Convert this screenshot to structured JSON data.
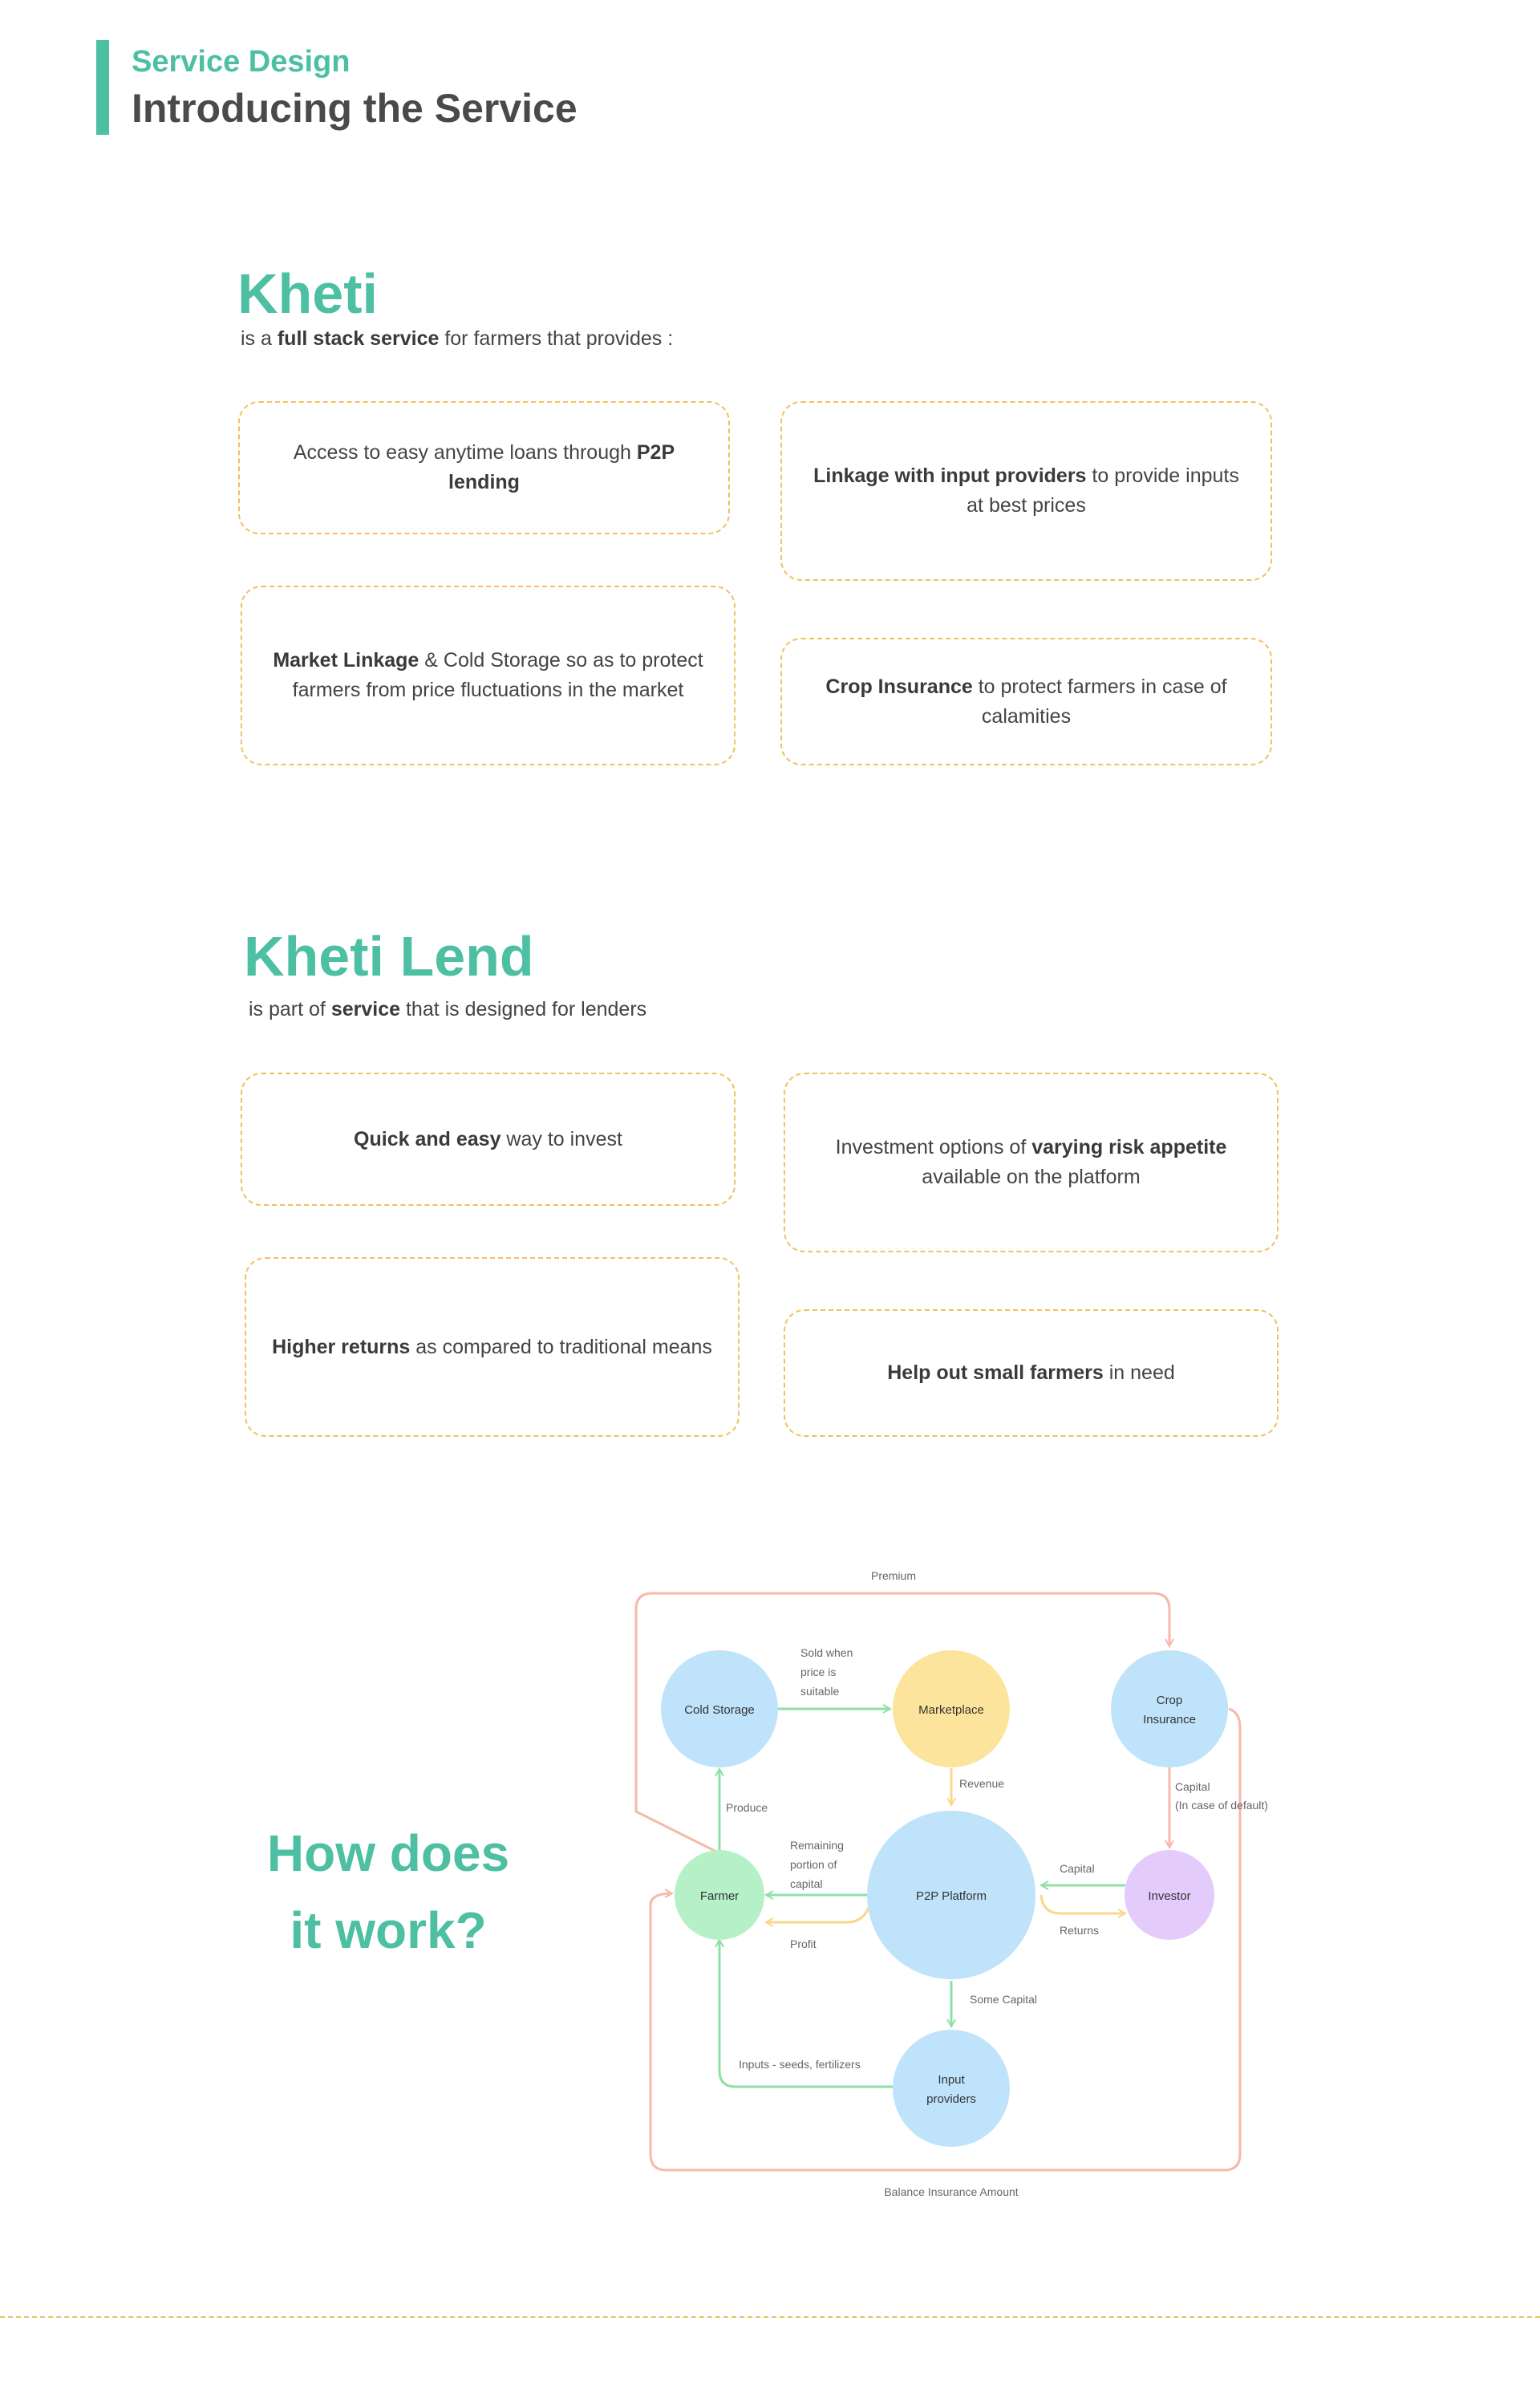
{
  "header": {
    "eyebrow": "Service Design",
    "title": "Introducing the Service"
  },
  "kheti": {
    "brand": "Kheti",
    "intro": [
      {
        "text": "is a ",
        "bold": false
      },
      {
        "text": "full stack service",
        "bold": true
      },
      {
        "text": " for farmers that provides :",
        "bold": false
      }
    ],
    "cards": [
      [
        {
          "text": "Access to easy anytime loans through ",
          "bold": false
        },
        {
          "text": "P2P lending",
          "bold": true
        }
      ],
      [
        {
          "text": "Linkage with input providers",
          "bold": true
        },
        {
          "text": " to provide inputs at best prices",
          "bold": false
        }
      ],
      [
        {
          "text": "Market Linkage",
          "bold": true
        },
        {
          "text": " & Cold Storage so as to protect farmers from price fluctuations in the market",
          "bold": false
        }
      ],
      [
        {
          "text": "Crop Insurance",
          "bold": true
        },
        {
          "text": " to protect farmers in case of calamities",
          "bold": false
        }
      ]
    ]
  },
  "kheti_lend": {
    "brand": "Kheti Lend",
    "intro": [
      {
        "text": "is part of ",
        "bold": false
      },
      {
        "text": "service",
        "bold": true
      },
      {
        "text": " that is designed for lenders",
        "bold": false
      }
    ],
    "cards": [
      [
        {
          "text": "Quick and easy",
          "bold": true
        },
        {
          "text": " way to invest",
          "bold": false
        }
      ],
      [
        {
          "text": "Investment options of ",
          "bold": false
        },
        {
          "text": "varying risk appetite",
          "bold": true
        },
        {
          "text": " available on the platform",
          "bold": false
        }
      ],
      [
        {
          "text": "Higher returns",
          "bold": true
        },
        {
          "text": " as compared to traditional means",
          "bold": false
        }
      ],
      [
        {
          "text": "Help out small farmers",
          "bold": true
        },
        {
          "text": " in need",
          "bold": false
        }
      ]
    ]
  },
  "how_it_works": {
    "title_line1": "How does",
    "title_line2": "it work?",
    "colors": {
      "blue": "#bfe3fb",
      "yellow": "#fde49c",
      "green": "#b5f0c6",
      "purple": "#e3cbfb",
      "arrow_green": "#8fe0a5",
      "arrow_yellow": "#f9d88c",
      "arrow_salmon": "#f6b9aa",
      "accent": "#4dbfa3"
    },
    "nodes": {
      "cold_storage": "Cold Storage",
      "marketplace": "Marketplace",
      "crop_insurance_1": "Crop",
      "crop_insurance_2": "Insurance",
      "farmer": "Farmer",
      "p2p_platform": "P2P Platform",
      "investor": "Investor",
      "input_providers_1": "Input",
      "input_providers_2": "providers"
    },
    "edges": {
      "premium": "Premium",
      "sold_1": "Sold when",
      "sold_2": "price is",
      "sold_3": "suitable",
      "revenue": "Revenue",
      "produce": "Produce",
      "capital_default_1": "Capital",
      "capital_default_2": "(In case of default)",
      "remaining_1": "Remaining",
      "remaining_2": "portion of",
      "remaining_3": "capital",
      "capital": "Capital",
      "returns": "Returns",
      "profit": "Profit",
      "some_capital": "Some Capital",
      "inputs": "Inputs - seeds, fertilizers",
      "balance": "Balance Insurance Amount"
    }
  }
}
